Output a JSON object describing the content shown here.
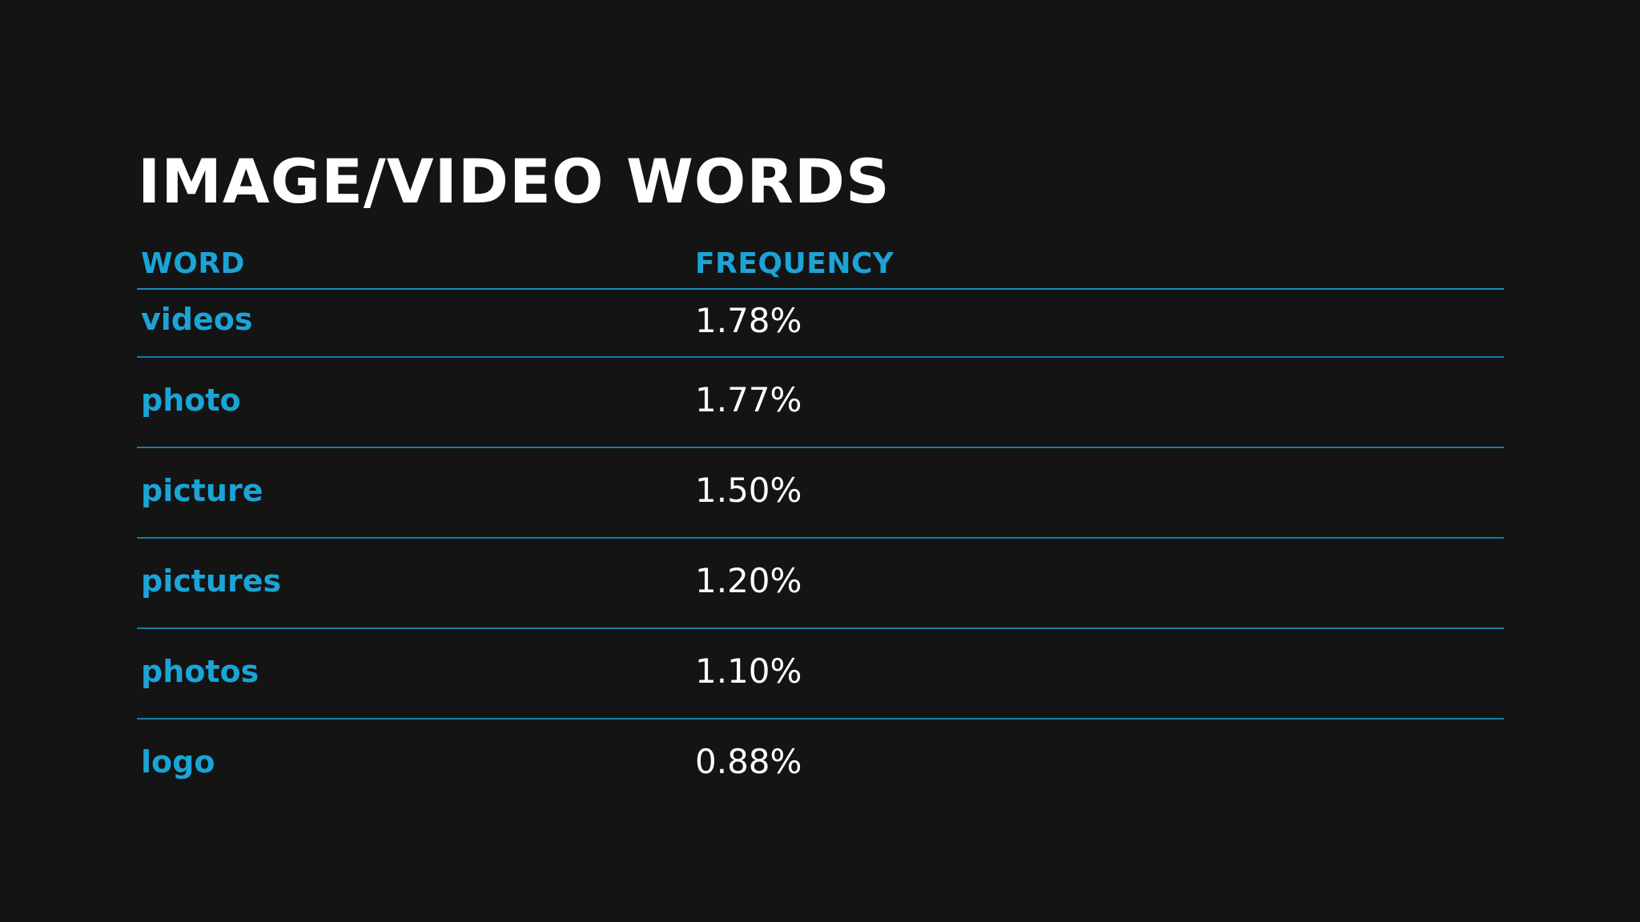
{
  "slide": {
    "title": "IMAGE/VIDEO WORDS",
    "table": {
      "headers": {
        "word": "WORD",
        "frequency": "FREQUENCY"
      },
      "rows": [
        {
          "word": "videos",
          "frequency": "1.78%"
        },
        {
          "word": "photo",
          "frequency": "1.77%"
        },
        {
          "word": "picture",
          "frequency": "1.50%"
        },
        {
          "word": "pictures",
          "frequency": "1.20%"
        },
        {
          "word": "photos",
          "frequency": "1.10%"
        },
        {
          "word": "logo",
          "frequency": "0.88%"
        }
      ]
    }
  },
  "colors": {
    "background": "#141414",
    "accent": "#1ba4d6",
    "rule": "#1a8fb4",
    "text": "#ffffff"
  }
}
